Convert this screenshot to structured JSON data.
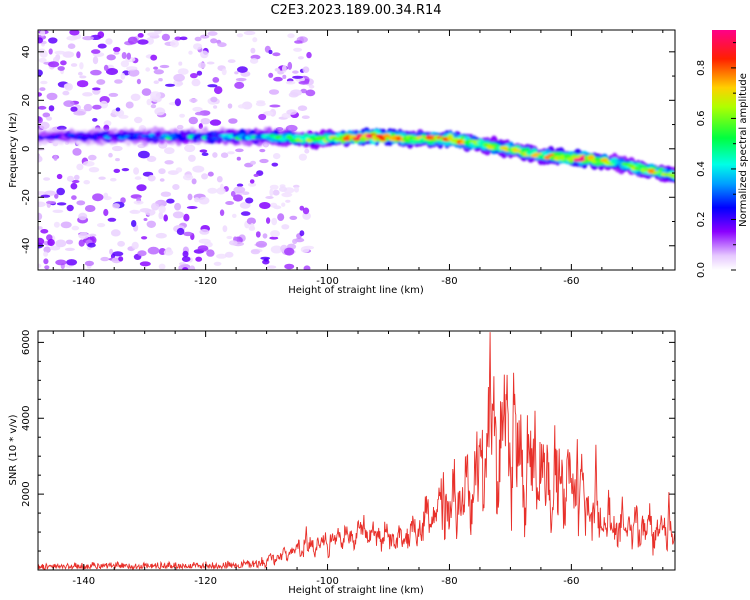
{
  "figure": {
    "title": "C2E3.2023.189.00.34.R14"
  },
  "chart_data": [
    {
      "type": "heatmap",
      "xlabel": "Height of straight line (km)",
      "ylabel": "Frequency (Hz)",
      "xlim": [
        -147.5,
        -43
      ],
      "ylim": [
        -50,
        49
      ],
      "xticks": [
        -140,
        -120,
        -100,
        -80,
        -60
      ],
      "yticks": [
        -40,
        -20,
        0,
        20,
        40
      ],
      "grid": false,
      "colorbar": {
        "label": "Normalized spectral amplitude",
        "range": [
          0,
          0.95
        ],
        "ticks": [
          0.0,
          0.2,
          0.4,
          0.6,
          0.8
        ],
        "colormap": "white-purple-blue-cyan-green-yellow-red-magenta"
      },
      "ridge": {
        "description_points": [
          {
            "x": -145,
            "f": 5,
            "a": 0.2
          },
          {
            "x": -130,
            "f": 5,
            "a": 0.32
          },
          {
            "x": -110,
            "f": 5,
            "a": 0.4
          },
          {
            "x": -105,
            "f": 4,
            "a": 0.55
          },
          {
            "x": -100,
            "f": 4,
            "a": 0.55
          },
          {
            "x": -92,
            "f": 5,
            "a": 0.85
          },
          {
            "x": -85,
            "f": 4,
            "a": 0.6
          },
          {
            "x": -80,
            "f": 4,
            "a": 0.75
          },
          {
            "x": -75,
            "f": 2,
            "a": 0.55
          },
          {
            "x": -70,
            "f": 0,
            "a": 0.6
          },
          {
            "x": -65,
            "f": -3,
            "a": 0.6
          },
          {
            "x": -58,
            "f": -4,
            "a": 0.8
          },
          {
            "x": -52,
            "f": -6,
            "a": 0.45
          },
          {
            "x": -47,
            "f": -9,
            "a": 0.65
          },
          {
            "x": -43,
            "f": -11,
            "a": 0.5
          }
        ]
      }
    },
    {
      "type": "line",
      "xlabel": "Height of straight line (km)",
      "ylabel": "SNR (10 * v/v)",
      "xlim": [
        -147.5,
        -43
      ],
      "ylim": [
        0,
        6300
      ],
      "xticks": [
        -140,
        -120,
        -100,
        -80,
        -60
      ],
      "yticks": [
        2000,
        4000,
        6000
      ],
      "grid": false,
      "color": "#e8302a",
      "envelope": [
        {
          "x": -147.5,
          "lo": 20,
          "hi": 220
        },
        {
          "x": -130,
          "lo": 30,
          "hi": 240
        },
        {
          "x": -115,
          "lo": 40,
          "hi": 280
        },
        {
          "x": -108,
          "lo": 80,
          "hi": 550
        },
        {
          "x": -103,
          "lo": 150,
          "hi": 1000
        },
        {
          "x": -100,
          "lo": 250,
          "hi": 1100
        },
        {
          "x": -95,
          "lo": 400,
          "hi": 1400
        },
        {
          "x": -88,
          "lo": 300,
          "hi": 1200
        },
        {
          "x": -81,
          "lo": 400,
          "hi": 2600
        },
        {
          "x": -76,
          "lo": 500,
          "hi": 3500
        },
        {
          "x": -73,
          "lo": 900,
          "hi": 6300
        },
        {
          "x": -70,
          "lo": 700,
          "hi": 5200
        },
        {
          "x": -66,
          "lo": 500,
          "hi": 4200
        },
        {
          "x": -60,
          "lo": 400,
          "hi": 3500
        },
        {
          "x": -55,
          "lo": 300,
          "hi": 2200
        },
        {
          "x": -50,
          "lo": 200,
          "hi": 1800
        },
        {
          "x": -43,
          "lo": 200,
          "hi": 1700
        }
      ],
      "peaks": [
        {
          "x": -103.5,
          "y": 1150
        },
        {
          "x": -98,
          "y": 1000
        },
        {
          "x": -94,
          "y": 1450
        },
        {
          "x": -81,
          "y": 2580
        },
        {
          "x": -75.5,
          "y": 3650
        },
        {
          "x": -73.3,
          "y": 6270
        },
        {
          "x": -71,
          "y": 5150
        },
        {
          "x": -69.5,
          "y": 5200
        },
        {
          "x": -66,
          "y": 4200
        },
        {
          "x": -64,
          "y": 3300
        },
        {
          "x": -62,
          "y": 3200
        },
        {
          "x": -59,
          "y": 3450
        },
        {
          "x": -56,
          "y": 3300
        },
        {
          "x": -44,
          "y": 2050
        }
      ]
    }
  ]
}
